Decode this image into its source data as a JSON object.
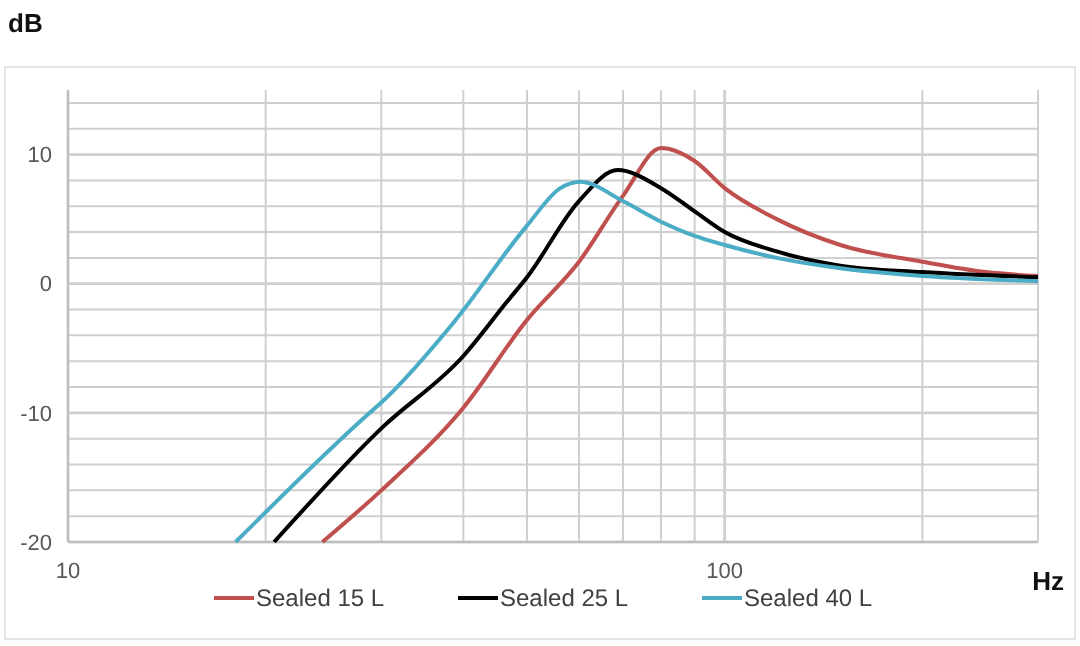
{
  "chart_data": {
    "type": "line",
    "ylabel": "dB",
    "xlabel": "Hz",
    "log": "x",
    "xlim": [
      10,
      300
    ],
    "ylim": [
      -20,
      15
    ],
    "xticks": [
      10,
      {
        "value": 20,
        "label": null
      },
      {
        "value": 30,
        "label": null
      },
      {
        "value": 40,
        "label": null
      },
      {
        "value": 50,
        "label": null
      },
      {
        "value": 60,
        "label": null
      },
      {
        "value": 70,
        "label": null
      },
      {
        "value": 80,
        "label": null
      },
      {
        "value": 90,
        "label": null
      },
      100,
      {
        "value": 200,
        "label": null
      },
      {
        "value": 300,
        "label": null
      }
    ],
    "yticks": [
      -20,
      {
        "value": -18,
        "label": null
      },
      {
        "value": -16,
        "label": null
      },
      {
        "value": -14,
        "label": null
      },
      {
        "value": -12,
        "label": null
      },
      -10,
      {
        "value": -8,
        "label": null
      },
      {
        "value": -6,
        "label": null
      },
      {
        "value": -4,
        "label": null
      },
      {
        "value": -2,
        "label": null
      },
      0,
      {
        "value": 2,
        "label": null
      },
      {
        "value": 4,
        "label": null
      },
      {
        "value": 6,
        "label": null
      },
      {
        "value": 8,
        "label": null
      },
      10,
      {
        "value": 12,
        "label": null
      },
      {
        "value": 14,
        "label": null
      }
    ],
    "grid": true,
    "legend": "bottom",
    "line_style": "solid",
    "marker": "none",
    "series": [
      {
        "name": "Sealed 15 L",
        "color": "#c0504d",
        "x": [
          24.4,
          30,
          40,
          50,
          60,
          70,
          80,
          90,
          100,
          120,
          150,
          200,
          250,
          300
        ],
        "values": [
          -20,
          -16,
          -9.6,
          -2.8,
          1.7,
          6.8,
          10.5,
          9.5,
          7.4,
          5,
          3,
          1.7,
          0.9,
          0.6
        ]
      },
      {
        "name": "Sealed 25 L",
        "color": "#000000",
        "x": [
          20.6,
          30,
          40,
          46.6,
          50,
          60,
          68.7,
          80,
          90,
          100,
          120,
          150,
          200,
          300
        ],
        "values": [
          -20,
          -11.2,
          -5.6,
          -1.4,
          0.5,
          6.4,
          8.8,
          7.4,
          5.6,
          4,
          2.5,
          1.4,
          0.9,
          0.5
        ]
      },
      {
        "name": "Sealed 40 L",
        "color": "#4bacc6",
        "x": [
          18,
          28.8,
          30,
          38.8,
          50,
          56.2,
          60.3,
          70,
          80,
          90,
          100,
          120,
          150,
          200,
          300
        ],
        "values": [
          -20,
          -10,
          -9.2,
          -2.9,
          4.5,
          7.4,
          7.9,
          6.4,
          4.8,
          3.7,
          3,
          2,
          1.2,
          0.6,
          0.2
        ]
      }
    ]
  }
}
